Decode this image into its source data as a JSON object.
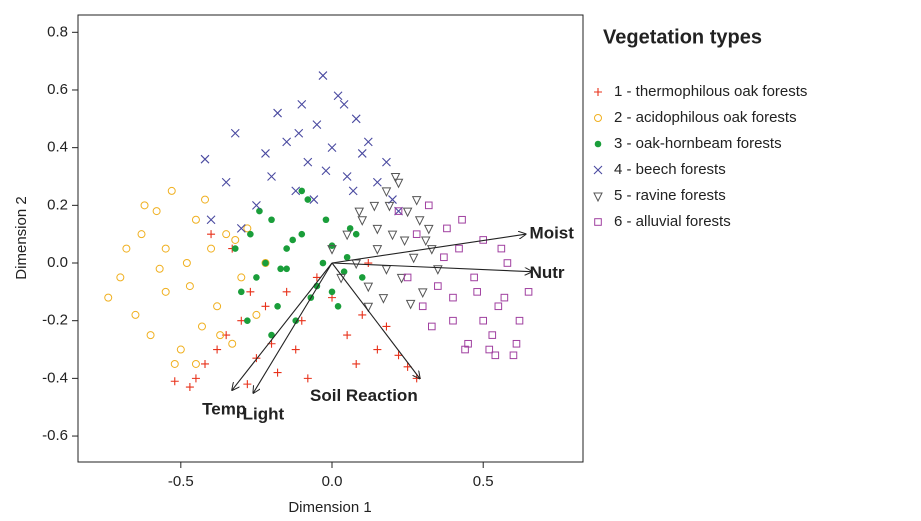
{
  "chart_data": {
    "type": "scatter",
    "xlabel": "Dimension 1",
    "ylabel": "Dimension 2",
    "legend_title": "Vegetation types",
    "legend": "right",
    "xlim": [
      -0.84,
      0.83
    ],
    "ylim": [
      -0.69,
      0.86
    ],
    "xticks": [
      {
        "value": -0.5,
        "label": "-0.5"
      },
      {
        "value": 0,
        "label": "0.0"
      },
      {
        "value": 0.5,
        "label": "0.5"
      }
    ],
    "yticks": [
      {
        "value": -0.6,
        "label": "-0.6"
      },
      {
        "value": -0.4,
        "label": "-0.4"
      },
      {
        "value": -0.2,
        "label": "-0.2"
      },
      {
        "value": 0,
        "label": "0.0"
      },
      {
        "value": 0.2,
        "label": "0.2"
      },
      {
        "value": 0.4,
        "label": "0.4"
      },
      {
        "value": 0.6,
        "label": "0.6"
      },
      {
        "value": 0.8,
        "label": "0.8"
      }
    ],
    "series": [
      {
        "name": "1 - thermophilous oak forests",
        "color": "#e8311a",
        "marker": "plus",
        "x": [
          -0.52,
          -0.45,
          -0.42,
          -0.38,
          -0.35,
          -0.3,
          -0.28,
          -0.25,
          -0.22,
          -0.2,
          -0.18,
          -0.15,
          -0.12,
          -0.1,
          -0.05,
          0.0,
          0.05,
          0.08,
          0.1,
          0.15,
          0.18,
          0.22,
          0.25,
          0.28,
          -0.4,
          -0.33,
          -0.27,
          -0.08,
          0.12,
          -0.47
        ],
        "values": [
          -0.41,
          -0.4,
          -0.35,
          -0.3,
          -0.25,
          -0.2,
          -0.42,
          -0.33,
          -0.15,
          -0.28,
          -0.38,
          -0.1,
          -0.3,
          -0.2,
          -0.05,
          -0.12,
          -0.25,
          -0.35,
          -0.18,
          -0.3,
          -0.22,
          -0.32,
          -0.36,
          -0.4,
          0.1,
          0.05,
          -0.1,
          -0.4,
          0.0,
          -0.43
        ]
      },
      {
        "name": "2 - acidophilous oak forests",
        "color": "#f0b020",
        "marker": "circle",
        "x": [
          -0.74,
          -0.7,
          -0.68,
          -0.65,
          -0.63,
          -0.6,
          -0.58,
          -0.55,
          -0.53,
          -0.5,
          -0.48,
          -0.45,
          -0.43,
          -0.4,
          -0.38,
          -0.35,
          -0.33,
          -0.3,
          -0.28,
          -0.25,
          -0.22,
          -0.62,
          -0.57,
          -0.52,
          -0.47,
          -0.42,
          -0.37,
          -0.32,
          -0.55,
          -0.45
        ],
        "values": [
          -0.12,
          -0.05,
          0.05,
          -0.18,
          0.1,
          -0.25,
          0.18,
          -0.1,
          0.25,
          -0.3,
          0.0,
          0.15,
          -0.22,
          0.05,
          -0.15,
          0.1,
          -0.28,
          -0.05,
          0.12,
          -0.18,
          0.0,
          0.2,
          -0.02,
          -0.35,
          -0.08,
          0.22,
          -0.25,
          0.08,
          0.05,
          -0.35
        ]
      },
      {
        "name": "3 - oak-hornbeam forests",
        "color": "#1a9e3a",
        "marker": "dot",
        "x": [
          -0.32,
          -0.3,
          -0.27,
          -0.25,
          -0.22,
          -0.2,
          -0.18,
          -0.15,
          -0.12,
          -0.1,
          -0.08,
          -0.05,
          -0.03,
          0.0,
          0.02,
          0.05,
          0.08,
          0.1,
          -0.28,
          -0.24,
          -0.17,
          -0.13,
          -0.07,
          -0.02,
          0.04,
          -0.2,
          -0.1,
          0.0,
          -0.15,
          0.06
        ],
        "values": [
          0.05,
          -0.1,
          0.1,
          -0.05,
          0.0,
          0.15,
          -0.15,
          0.05,
          -0.2,
          0.1,
          0.22,
          -0.08,
          0.0,
          0.06,
          -0.15,
          0.02,
          0.1,
          -0.05,
          -0.2,
          0.18,
          -0.02,
          0.08,
          -0.12,
          0.15,
          -0.03,
          -0.25,
          0.25,
          -0.1,
          -0.02,
          0.12
        ]
      },
      {
        "name": "4 - beech forests",
        "color": "#4a4aa0",
        "marker": "cross",
        "x": [
          -0.42,
          -0.4,
          -0.35,
          -0.32,
          -0.3,
          -0.25,
          -0.22,
          -0.2,
          -0.18,
          -0.15,
          -0.12,
          -0.1,
          -0.08,
          -0.05,
          -0.03,
          0.0,
          0.02,
          0.05,
          0.08,
          0.1,
          0.12,
          0.15,
          0.18,
          0.2,
          0.22,
          -0.11,
          -0.02,
          0.04,
          -0.06,
          0.07
        ],
        "values": [
          0.36,
          0.15,
          0.28,
          0.45,
          0.12,
          0.2,
          0.38,
          0.3,
          0.52,
          0.42,
          0.25,
          0.55,
          0.35,
          0.48,
          0.65,
          0.4,
          0.58,
          0.3,
          0.5,
          0.38,
          0.42,
          0.28,
          0.35,
          0.22,
          0.18,
          0.45,
          0.32,
          0.55,
          0.22,
          0.25
        ]
      },
      {
        "name": "5 - ravine forests",
        "color": "#555555",
        "marker": "triangle",
        "x": [
          0.0,
          0.03,
          0.05,
          0.08,
          0.1,
          0.12,
          0.14,
          0.15,
          0.17,
          0.18,
          0.2,
          0.22,
          0.23,
          0.25,
          0.27,
          0.28,
          0.3,
          0.32,
          0.33,
          0.35,
          0.12,
          0.18,
          0.24,
          0.29,
          0.15,
          0.21,
          0.26,
          0.09,
          0.19,
          0.31
        ],
        "values": [
          0.05,
          -0.05,
          0.1,
          0.0,
          0.15,
          -0.08,
          0.2,
          0.05,
          -0.12,
          0.25,
          0.1,
          0.28,
          -0.05,
          0.18,
          0.02,
          0.22,
          -0.1,
          0.12,
          0.05,
          -0.02,
          -0.15,
          -0.02,
          0.08,
          0.15,
          0.12,
          0.3,
          -0.14,
          0.18,
          0.2,
          0.08
        ]
      },
      {
        "name": "6 - alluvial forests",
        "color": "#a040a0",
        "marker": "square",
        "x": [
          0.22,
          0.25,
          0.28,
          0.3,
          0.32,
          0.35,
          0.38,
          0.4,
          0.42,
          0.45,
          0.48,
          0.5,
          0.52,
          0.55,
          0.58,
          0.6,
          0.62,
          0.65,
          0.33,
          0.37,
          0.43,
          0.47,
          0.53,
          0.57,
          0.44,
          0.5,
          0.56,
          0.61,
          0.4,
          0.54
        ],
        "values": [
          0.18,
          -0.05,
          0.1,
          -0.15,
          0.2,
          -0.08,
          0.12,
          -0.2,
          0.05,
          -0.28,
          -0.1,
          0.08,
          -0.3,
          -0.15,
          0.0,
          -0.32,
          -0.2,
          -0.1,
          -0.22,
          0.02,
          0.15,
          -0.05,
          -0.25,
          -0.12,
          -0.3,
          -0.2,
          0.05,
          -0.28,
          -0.12,
          -0.32
        ]
      }
    ],
    "vectors": [
      {
        "label": "Moist",
        "x": 0.64,
        "y": 0.1
      },
      {
        "label": "Nutr",
        "x": 0.66,
        "y": -0.03
      },
      {
        "label": "Soil Reaction",
        "x": 0.29,
        "y": -0.4
      },
      {
        "label": "Temp",
        "x": -0.33,
        "y": -0.44
      },
      {
        "label": "Light",
        "x": -0.26,
        "y": -0.45
      }
    ]
  }
}
